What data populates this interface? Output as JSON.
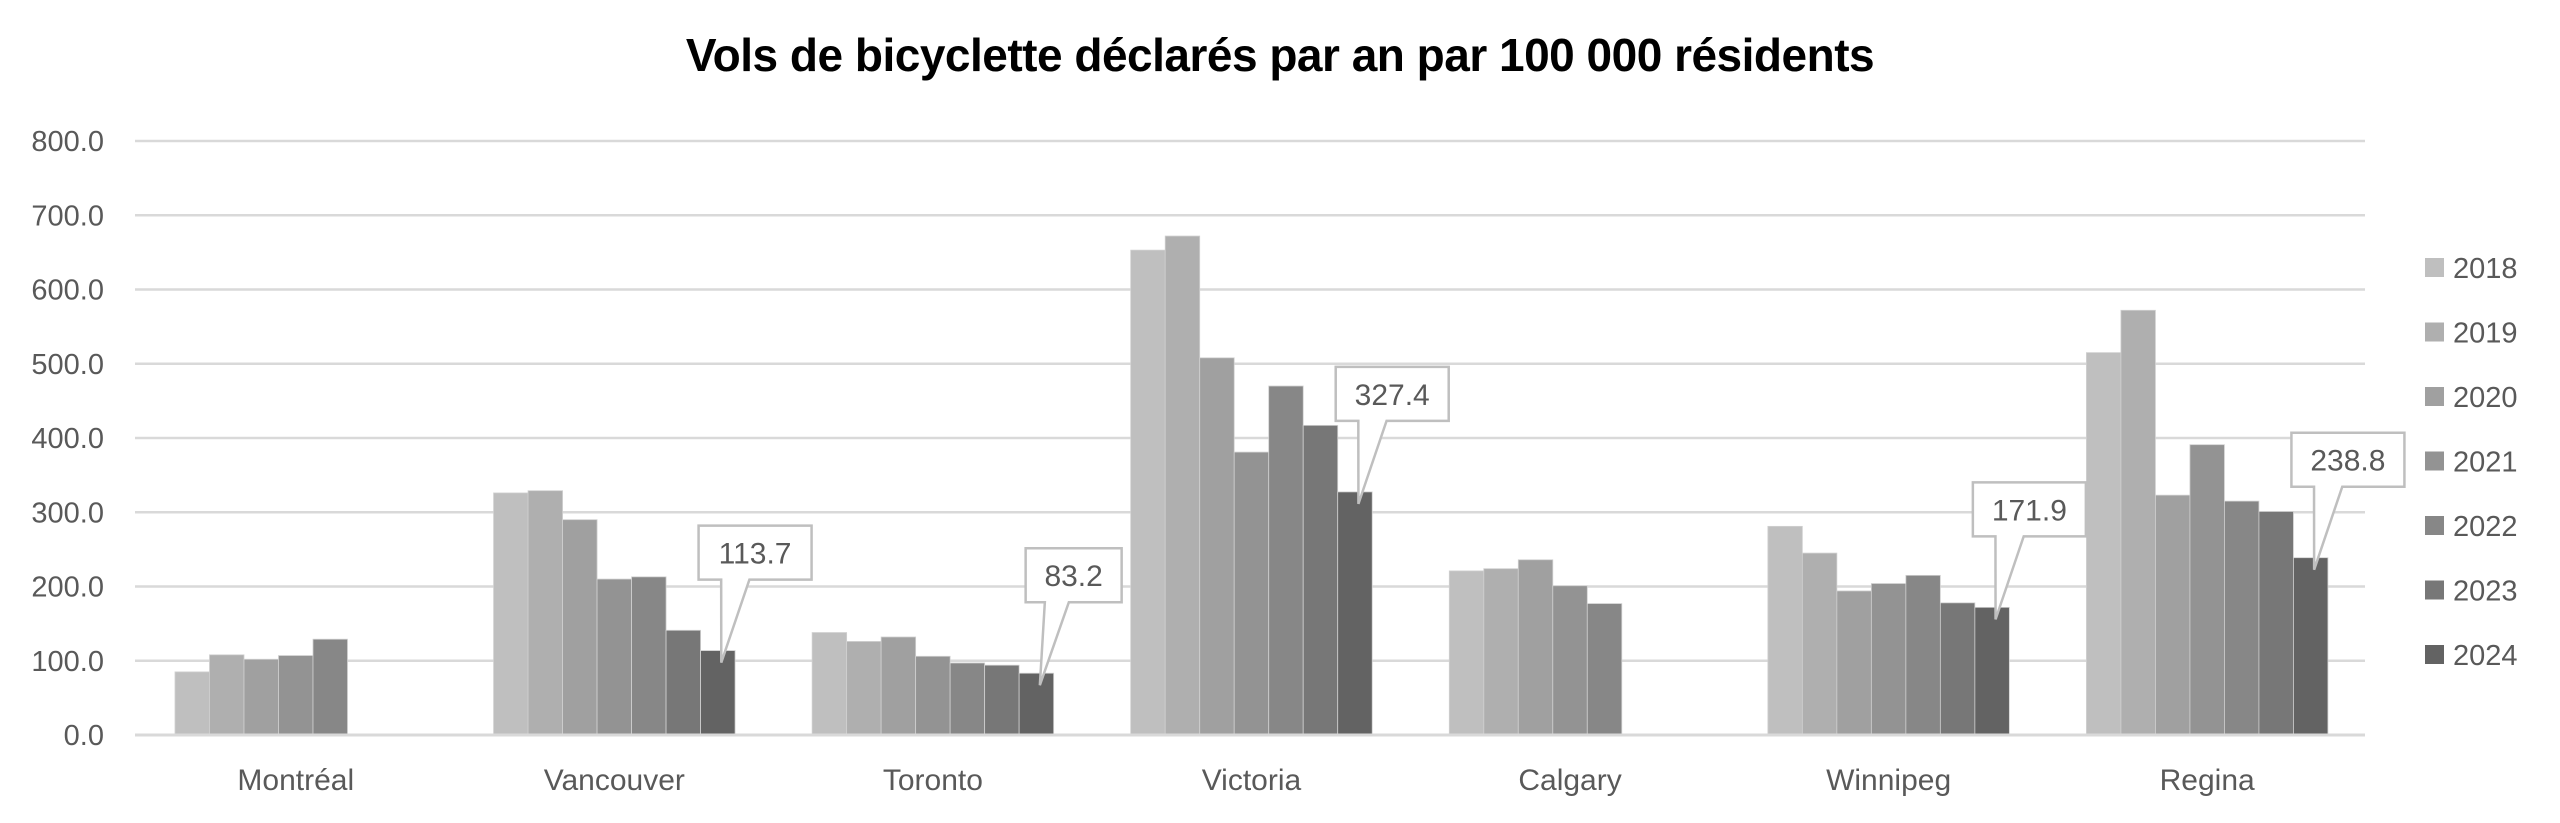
{
  "chart_data": {
    "type": "bar",
    "title": "Vols de bicyclette déclarés par an par 100 000 résidents",
    "xlabel": "",
    "ylabel": "",
    "ylim": [
      0,
      800
    ],
    "yticks": [
      "0.0",
      "100.0",
      "200.0",
      "300.0",
      "400.0",
      "500.0",
      "600.0",
      "700.0",
      "800.0"
    ],
    "grid": true,
    "legend_position": "right",
    "categories": [
      "Montréal",
      "Vancouver",
      "Toronto",
      "Victoria",
      "Calgary",
      "Winnipeg",
      "Regina"
    ],
    "series": [
      {
        "name": "2018",
        "color": "#bfbfbf",
        "values": [
          85,
          326,
          138,
          653,
          221,
          281,
          515
        ]
      },
      {
        "name": "2019",
        "color": "#afafaf",
        "values": [
          108,
          329,
          126,
          672,
          224,
          245,
          572
        ]
      },
      {
        "name": "2020",
        "color": "#a0a0a0",
        "values": [
          102,
          290,
          132,
          508,
          236,
          194,
          323
        ]
      },
      {
        "name": "2021",
        "color": "#939393",
        "values": [
          107,
          210,
          106,
          381,
          201,
          204,
          391
        ]
      },
      {
        "name": "2022",
        "color": "#878787",
        "values": [
          129,
          213,
          97,
          470,
          177,
          215,
          315
        ]
      },
      {
        "name": "2023",
        "color": "#777777",
        "values": [
          null,
          141,
          94,
          417,
          null,
          178,
          301
        ]
      },
      {
        "name": "2024",
        "color": "#636363",
        "values": [
          null,
          113.7,
          83.2,
          327.4,
          null,
          171.9,
          238.8
        ]
      }
    ],
    "annotations": [
      {
        "category": "Vancouver",
        "series": "2024",
        "label": "113.7"
      },
      {
        "category": "Toronto",
        "series": "2024",
        "label": "83.2"
      },
      {
        "category": "Victoria",
        "series": "2024",
        "label": "327.4"
      },
      {
        "category": "Winnipeg",
        "series": "2024",
        "label": "171.9"
      },
      {
        "category": "Regina",
        "series": "2024",
        "label": "238.8"
      }
    ]
  }
}
